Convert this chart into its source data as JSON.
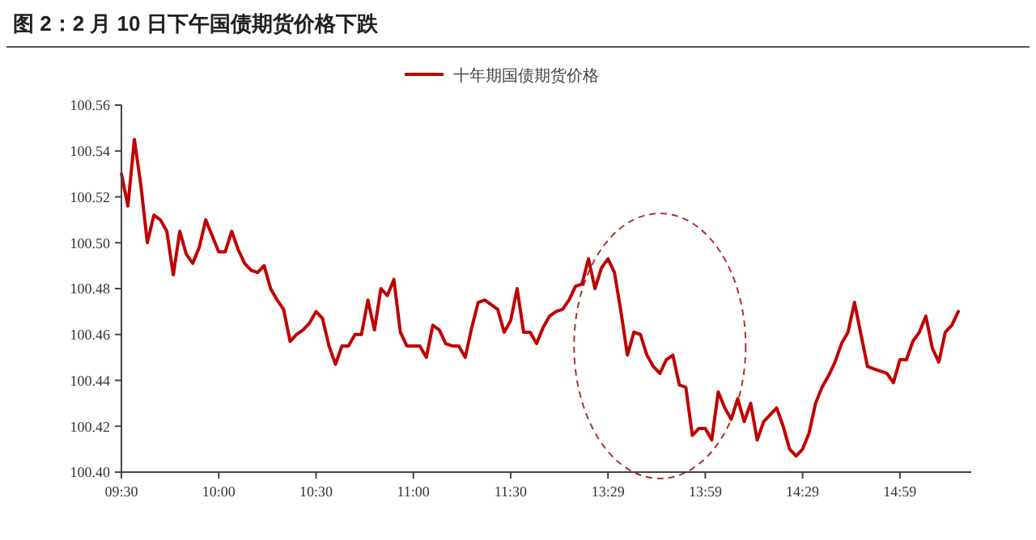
{
  "chart_data": {
    "type": "line",
    "title": "图 2：2 月 10 日下午国债期货价格下跌",
    "categories": [
      "09:30",
      null,
      null,
      null,
      null,
      null,
      null,
      null,
      null,
      null,
      null,
      null,
      null,
      null,
      null,
      "10:00",
      null,
      null,
      null,
      null,
      null,
      null,
      null,
      null,
      null,
      null,
      null,
      null,
      null,
      null,
      "10:30",
      null,
      null,
      null,
      null,
      null,
      null,
      null,
      null,
      null,
      null,
      null,
      null,
      null,
      null,
      "11:00",
      null,
      null,
      null,
      null,
      null,
      null,
      null,
      null,
      null,
      null,
      null,
      null,
      null,
      null,
      "11:30",
      null,
      null,
      null,
      null,
      null,
      null,
      null,
      null,
      null,
      null,
      null,
      null,
      null,
      null,
      "13:29",
      null,
      null,
      null,
      null,
      null,
      null,
      null,
      null,
      null,
      null,
      null,
      null,
      null,
      null,
      "13:59",
      null,
      null,
      null,
      null,
      null,
      null,
      null,
      null,
      null,
      null,
      null,
      null,
      null,
      null,
      "14:29",
      null,
      null,
      null,
      null,
      null,
      null,
      null,
      null,
      null,
      null,
      null,
      null,
      null,
      null,
      "14:59",
      null,
      null,
      null,
      null,
      null,
      null,
      null,
      null,
      null
    ],
    "series": [
      {
        "name": "十年期国债期货价格",
        "color": "#c00000",
        "values": [
          100.53,
          100.516,
          100.545,
          100.525,
          100.5,
          100.512,
          100.51,
          100.505,
          100.486,
          100.505,
          100.495,
          100.491,
          100.498,
          100.51,
          100.503,
          100.496,
          100.496,
          100.505,
          100.497,
          100.491,
          100.488,
          100.487,
          100.49,
          100.48,
          100.475,
          100.471,
          100.457,
          100.46,
          100.462,
          100.465,
          100.47,
          100.467,
          100.455,
          100.447,
          100.455,
          100.455,
          100.46,
          100.46,
          100.475,
          100.462,
          100.48,
          100.477,
          100.484,
          100.461,
          100.455,
          100.455,
          100.455,
          100.45,
          100.464,
          100.462,
          100.456,
          100.455,
          100.455,
          100.45,
          100.463,
          100.474,
          100.475,
          100.473,
          100.471,
          100.461,
          100.466,
          100.48,
          100.461,
          100.461,
          100.456,
          100.463,
          100.468,
          100.47,
          100.471,
          100.475,
          100.481,
          100.482,
          100.493,
          100.48,
          100.489,
          100.493,
          100.487,
          100.47,
          100.451,
          100.461,
          100.46,
          100.451,
          100.446,
          100.443,
          100.449,
          100.451,
          100.438,
          100.437,
          100.416,
          100.419,
          100.419,
          100.414,
          100.435,
          100.428,
          100.423,
          100.432,
          100.422,
          100.43,
          100.414,
          100.422,
          100.425,
          100.428,
          100.42,
          100.41,
          100.407,
          100.41,
          100.417,
          100.43,
          100.437,
          100.442,
          100.448,
          100.456,
          100.461,
          100.474,
          100.46,
          100.446,
          100.445,
          100.444,
          100.443,
          100.439,
          100.449,
          100.449,
          100.457,
          100.461,
          100.468,
          100.454,
          100.448,
          100.461,
          100.464,
          100.47
        ]
      }
    ],
    "ylim": [
      100.4,
      100.56
    ],
    "yticks": [
      {
        "value": 100.4,
        "label": "100.40"
      },
      {
        "value": 100.42,
        "label": "100.42"
      },
      {
        "value": 100.44,
        "label": "100.44"
      },
      {
        "value": 100.46,
        "label": "100.46"
      },
      {
        "value": 100.48,
        "label": "100.48"
      },
      {
        "value": 100.5,
        "label": "100.50"
      },
      {
        "value": 100.52,
        "label": "100.52"
      },
      {
        "value": 100.54,
        "label": "100.54"
      },
      {
        "value": 100.56,
        "label": "100.56"
      }
    ],
    "legend": "top"
  }
}
